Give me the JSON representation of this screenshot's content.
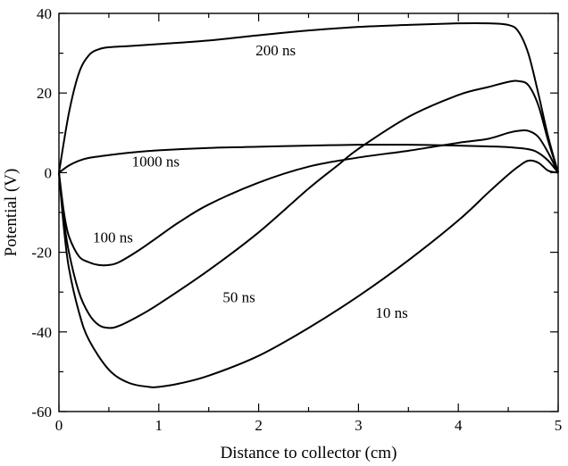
{
  "chart_data": {
    "type": "line",
    "xlabel": "Distance to collector (cm)",
    "ylabel": "Potential (V)",
    "xlim": [
      0,
      5
    ],
    "ylim": [
      -60,
      40
    ],
    "x_ticks": [
      0,
      1,
      2,
      3,
      4,
      5
    ],
    "y_ticks": [
      -60,
      -40,
      -20,
      0,
      20,
      40
    ],
    "x_tick_labels": [
      "0",
      "1",
      "2",
      "3",
      "4",
      "5"
    ],
    "y_tick_labels": [
      "-60",
      "-40",
      "-20",
      "0",
      "20",
      "40"
    ],
    "grid": false,
    "legend": "none",
    "line_color": "#000000",
    "series": [
      {
        "name": "200 ns",
        "x": [
          0,
          0.1,
          0.2,
          0.3,
          0.4,
          0.5,
          0.7,
          1.0,
          1.5,
          2.0,
          2.5,
          3.0,
          3.5,
          4.0,
          4.3,
          4.5,
          4.6,
          4.7,
          4.8,
          4.9,
          5.0
        ],
        "y": [
          0,
          15,
          25,
          29.5,
          31,
          31.5,
          31.8,
          32.3,
          33.2,
          34.5,
          35.7,
          36.6,
          37.1,
          37.5,
          37.5,
          37.1,
          35.5,
          30,
          20,
          9,
          0
        ]
      },
      {
        "name": "1000 ns",
        "x": [
          0,
          0.1,
          0.2,
          0.3,
          0.5,
          0.7,
          1.0,
          1.5,
          2.0,
          2.5,
          3.0,
          3.5,
          4.0,
          4.3,
          4.5,
          4.7,
          4.8,
          4.9,
          5.0
        ],
        "y": [
          0,
          1.8,
          3,
          3.7,
          4.4,
          5,
          5.6,
          6.2,
          6.5,
          6.8,
          7,
          7,
          6.8,
          6.6,
          6.4,
          5.9,
          5,
          3,
          0
        ]
      },
      {
        "name": "100 ns",
        "x": [
          0,
          0.05,
          0.1,
          0.2,
          0.3,
          0.4,
          0.5,
          0.6,
          0.8,
          1.0,
          1.2,
          1.5,
          2.0,
          2.5,
          3.0,
          3.5,
          4.0,
          4.3,
          4.5,
          4.6,
          4.7,
          4.8,
          4.9,
          5.0
        ],
        "y": [
          0,
          -10,
          -16,
          -21,
          -22.5,
          -23.2,
          -23.2,
          -22.5,
          -19.5,
          -16,
          -12.5,
          -8,
          -2.5,
          1.5,
          3.8,
          5.5,
          7.5,
          8.5,
          10,
          10.5,
          10.5,
          9,
          5,
          0
        ]
      },
      {
        "name": "50 ns",
        "x": [
          0,
          0.05,
          0.1,
          0.2,
          0.3,
          0.4,
          0.5,
          0.6,
          0.8,
          1.0,
          1.5,
          2.0,
          2.5,
          2.8,
          3.0,
          3.5,
          4.0,
          4.3,
          4.5,
          4.6,
          4.7,
          4.8,
          4.9,
          5.0
        ],
        "y": [
          0,
          -12,
          -20,
          -30,
          -35.5,
          -38.3,
          -39,
          -38.5,
          -36,
          -33,
          -24.5,
          -15,
          -4,
          2,
          6,
          14,
          19.5,
          21.5,
          22.8,
          23,
          22,
          17,
          8,
          0
        ]
      },
      {
        "name": "10 ns",
        "x": [
          0,
          0.05,
          0.1,
          0.2,
          0.3,
          0.5,
          0.7,
          0.9,
          1.0,
          1.2,
          1.5,
          2.0,
          2.5,
          3.0,
          3.5,
          4.0,
          4.3,
          4.5,
          4.6,
          4.7,
          4.8,
          4.9,
          5.0
        ],
        "y": [
          0,
          -14,
          -24,
          -35,
          -42,
          -49.5,
          -52.8,
          -53.8,
          -53.8,
          -53,
          -51,
          -46,
          -39,
          -31,
          -22,
          -12,
          -5,
          -0.5,
          1.5,
          3,
          2.5,
          0.5,
          0
        ]
      }
    ],
    "annotations": [
      {
        "text": "200 ns",
        "x": 1.97,
        "y": 29.5
      },
      {
        "text": "1000 ns",
        "x": 0.73,
        "y": 1.5
      },
      {
        "text": "100 ns",
        "x": 0.34,
        "y": -17.5
      },
      {
        "text": "50 ns",
        "x": 1.64,
        "y": -32.5
      },
      {
        "text": "10 ns",
        "x": 3.17,
        "y": -36.5
      }
    ]
  }
}
